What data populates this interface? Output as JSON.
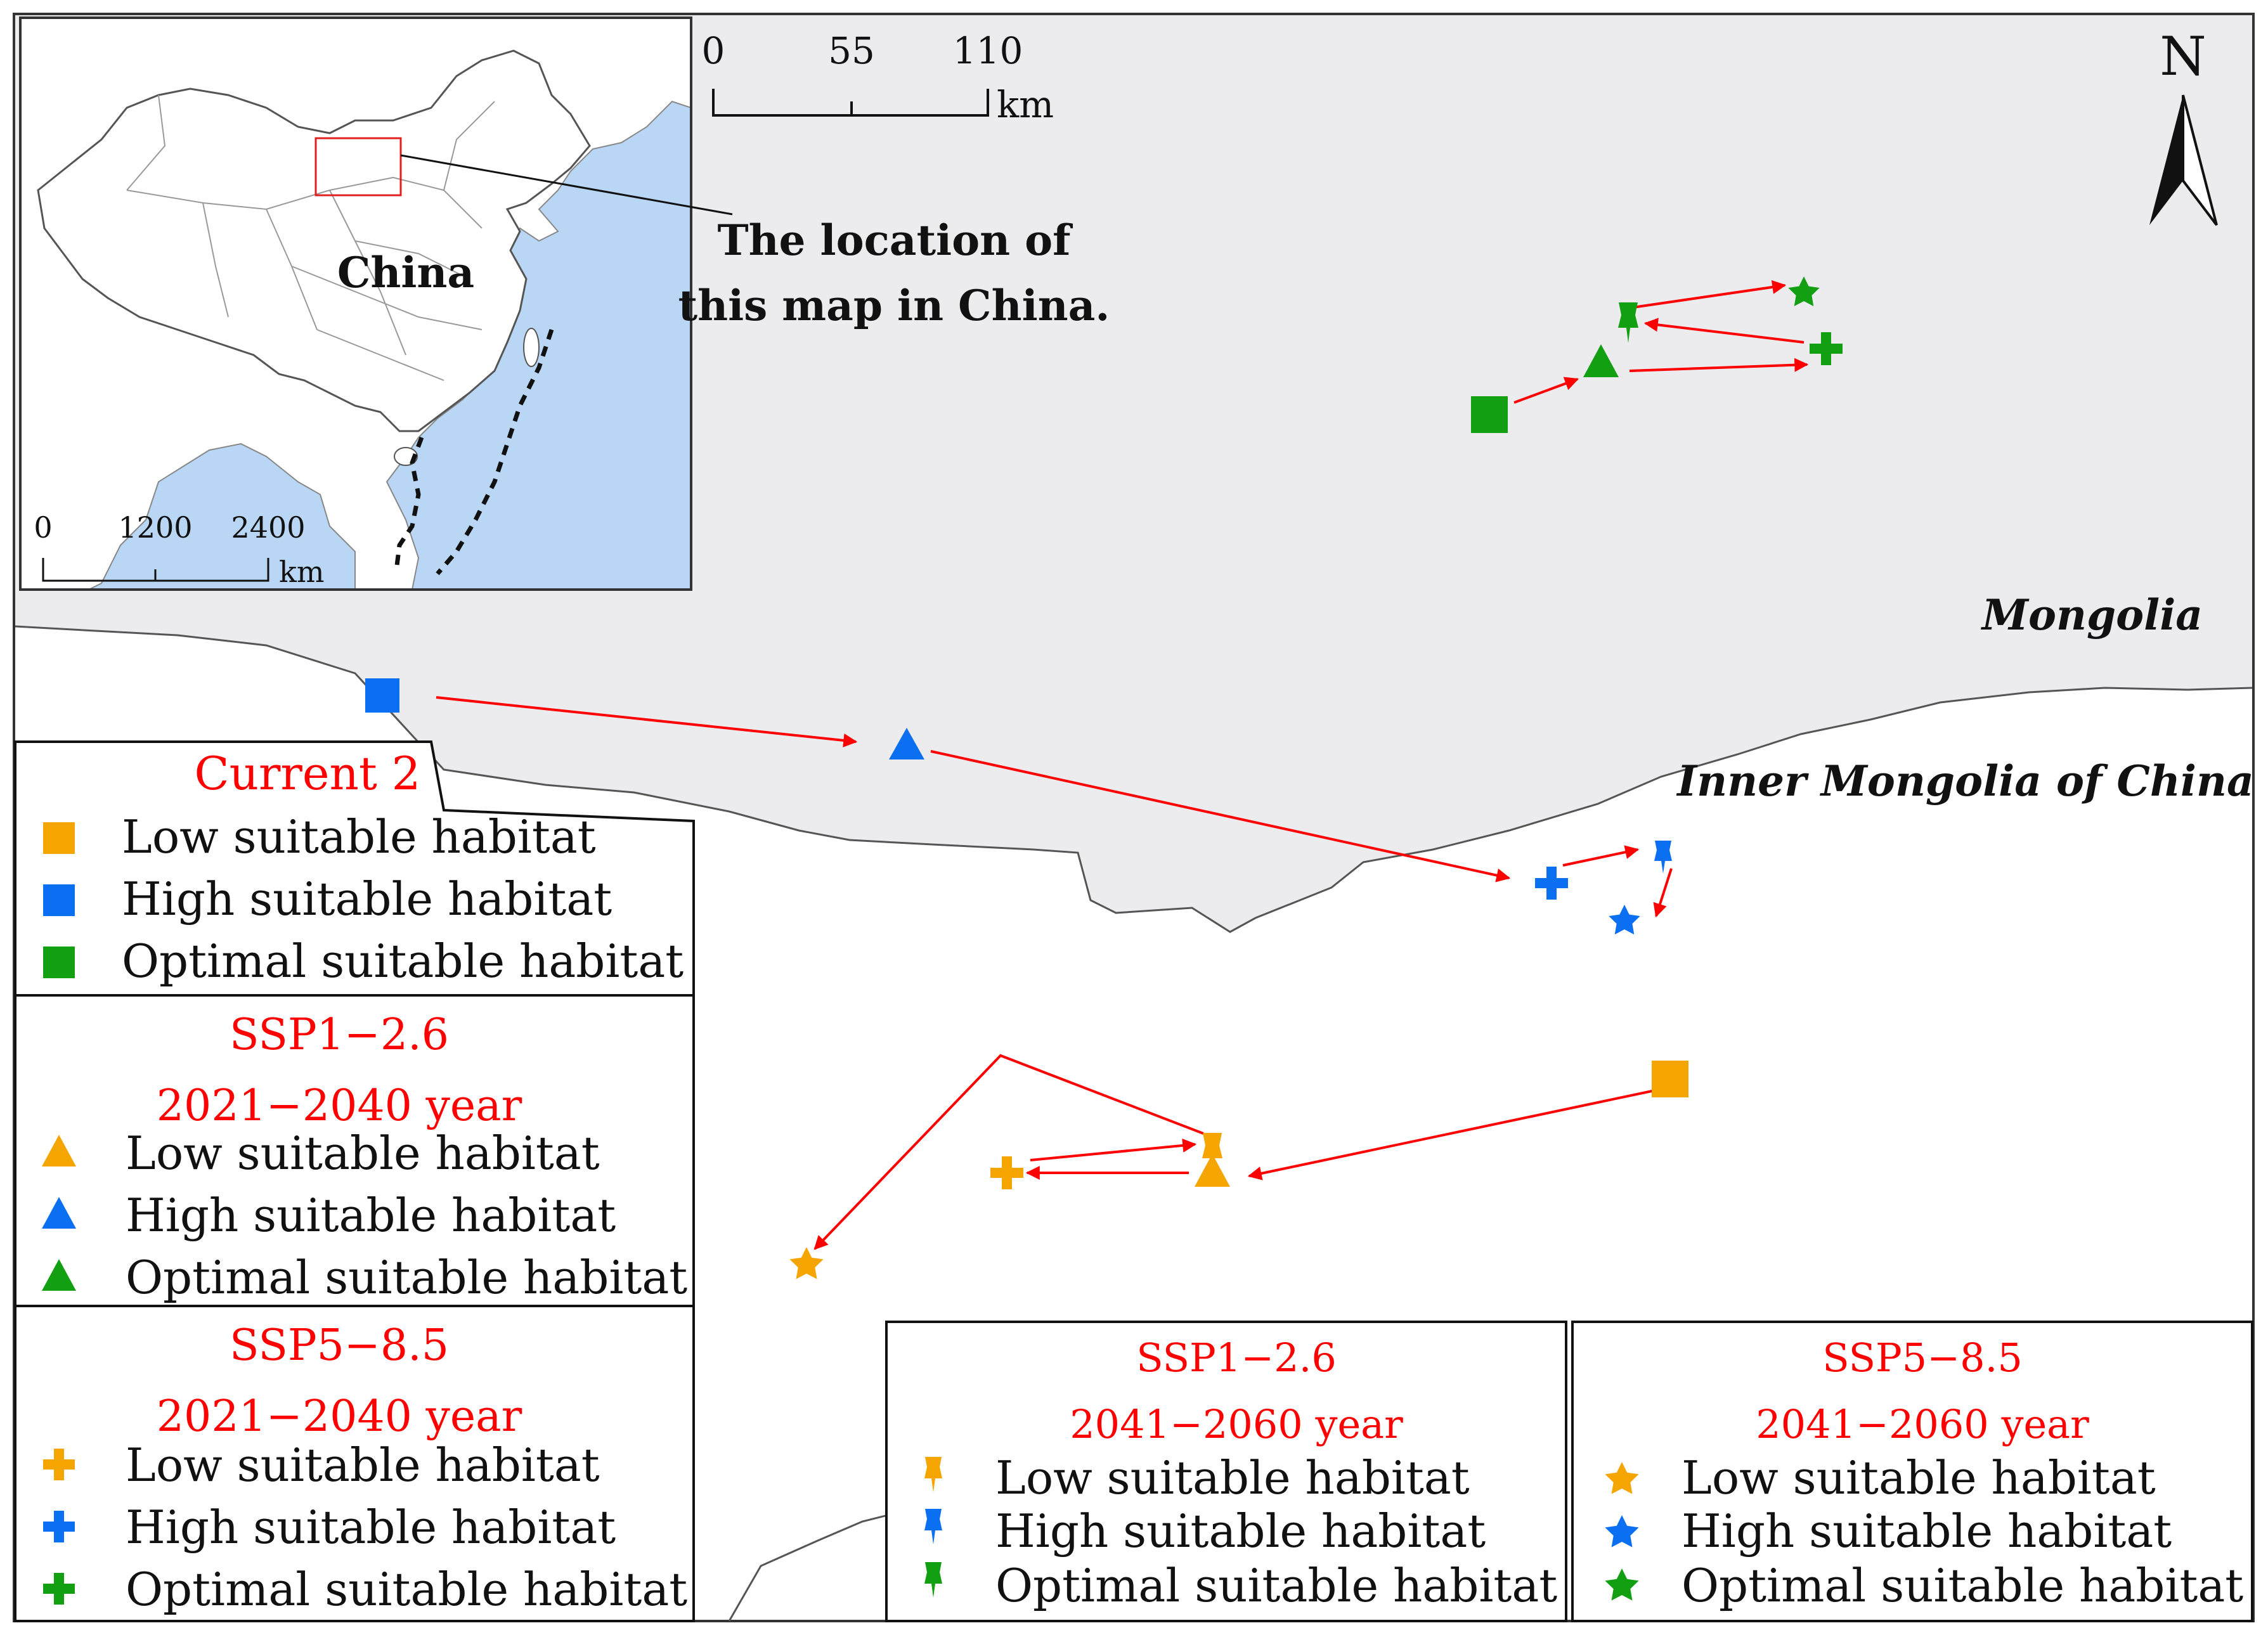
{
  "labels": {
    "mongolia": "Mongolia",
    "inner_mongolia": "Inner Mongolia of China",
    "north": "N",
    "callout_line1": "The location of",
    "callout_line2": "this map in China.",
    "inset_country": "China"
  },
  "scale_main": {
    "ticks": [
      "0",
      "55",
      "110"
    ],
    "unit": "km"
  },
  "scale_inset": {
    "ticks": [
      "0",
      "1200",
      "2400"
    ],
    "unit": "km"
  },
  "colors": {
    "low": "#f5a500",
    "high": "#0a6ff0",
    "optimal": "#12a012",
    "arrow": "#ff0000",
    "heading": "#ff0000",
    "mongolia_fill": "#ececef",
    "sea": "#b9d6f5",
    "land": "#ffffff"
  },
  "legend": {
    "current": {
      "title": "Current 2",
      "icon": "square",
      "items": [
        "Low suitable habitat",
        "High suitable habitat",
        "Optimal suitable habitat"
      ]
    },
    "ssp126_2021": {
      "title1": "SSP1−2.6",
      "title2": "2021−2040 year",
      "icon": "triangle",
      "items": [
        "Low suitable habitat",
        "High suitable habitat",
        "Optimal suitable habitat"
      ]
    },
    "ssp585_2021": {
      "title1": "SSP5−8.5",
      "title2": "2021−2040 year",
      "icon": "cross",
      "items": [
        "Low suitable habitat",
        "High suitable habitat",
        "Optimal suitable habitat"
      ]
    },
    "ssp126_2041": {
      "title1": "SSP1−2.6",
      "title2": "2041−2060 year",
      "icon": "pin",
      "items": [
        "Low suitable habitat",
        "High suitable habitat",
        "Optimal suitable habitat"
      ]
    },
    "ssp585_2041": {
      "title1": "SSP5−8.5",
      "title2": "2041−2060 year",
      "icon": "star",
      "items": [
        "Low suitable habitat",
        "High suitable habitat",
        "Optimal suitable habitat"
      ]
    }
  }
}
